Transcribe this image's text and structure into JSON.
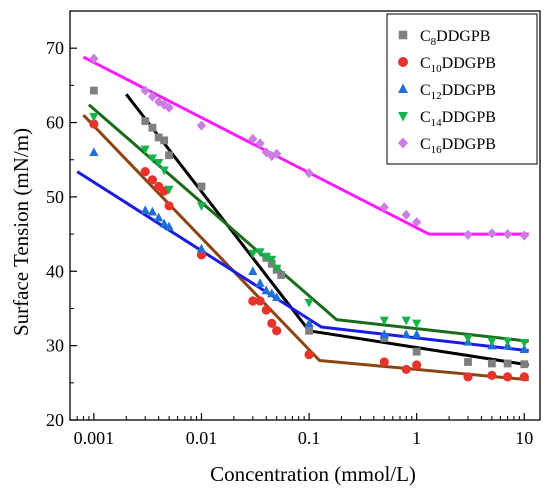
{
  "chart_data": {
    "type": "scatter",
    "xlabel": "Concentration (mmol/L)",
    "ylabel": "Surface Tension (mN/m)",
    "xscale": "log",
    "xlim": [
      0.0006,
      14
    ],
    "ylim": [
      20,
      75
    ],
    "x_ticks": [
      0.001,
      0.01,
      0.1,
      1,
      10
    ],
    "x_tick_labels": [
      "0.001",
      "0.01",
      "0.1",
      "1",
      "10"
    ],
    "y_ticks": [
      20,
      30,
      40,
      50,
      60,
      70
    ],
    "y_tick_labels": [
      "20",
      "30",
      "40",
      "50",
      "60",
      "70"
    ],
    "grid": false,
    "legend_position": "top-right",
    "series": [
      {
        "name": "C8DDGPB",
        "name_base": "C",
        "name_sub": "8",
        "name_rest": "DDGPB",
        "color": "#7f7f7f",
        "marker": "square",
        "line_color": "#000000",
        "x": [
          0.001,
          0.003,
          0.0035,
          0.004,
          0.0045,
          0.005,
          0.01,
          0.04,
          0.045,
          0.05,
          0.055,
          0.1,
          0.5,
          1,
          3,
          5,
          7,
          10
        ],
        "y": [
          64.3,
          60.2,
          59.3,
          58.0,
          57.6,
          55.6,
          51.4,
          41.8,
          41.0,
          40.2,
          39.5,
          32.0,
          31.0,
          29.2,
          27.8,
          27.6,
          27.6,
          27.5
        ],
        "fit": [
          [
            0.002,
            63.8
          ],
          [
            0.1,
            32.0
          ],
          [
            11,
            27.4
          ]
        ]
      },
      {
        "name": "C10DDGPB",
        "name_base": "C",
        "name_sub": "10",
        "name_rest": "DDGPB",
        "color": "#e8332c",
        "marker": "circle",
        "line_color": "#8b4513",
        "x": [
          0.001,
          0.003,
          0.0035,
          0.004,
          0.0045,
          0.005,
          0.01,
          0.03,
          0.035,
          0.04,
          0.045,
          0.05,
          0.1,
          0.5,
          0.8,
          1,
          3,
          5,
          7,
          10
        ],
        "y": [
          59.8,
          53.4,
          52.3,
          51.4,
          50.8,
          48.8,
          42.2,
          36.0,
          36.0,
          34.8,
          33.0,
          32.0,
          28.8,
          27.8,
          26.8,
          27.4,
          25.8,
          26.0,
          25.8,
          25.8
        ],
        "fit": [
          [
            0.0008,
            61.0
          ],
          [
            0.125,
            28.0
          ],
          [
            11,
            25.4
          ]
        ]
      },
      {
        "name": "C12DDGPB",
        "name_base": "C",
        "name_sub": "12",
        "name_rest": "DDGPB",
        "color": "#1f6fd6",
        "marker": "triangle-up",
        "line_color": "#1a1ae6",
        "x": [
          0.001,
          0.003,
          0.0035,
          0.004,
          0.0045,
          0.005,
          0.01,
          0.03,
          0.035,
          0.04,
          0.045,
          0.05,
          0.1,
          0.5,
          0.8,
          1,
          3,
          5,
          7,
          10
        ],
        "y": [
          56.0,
          48.2,
          48.0,
          47.2,
          46.4,
          46.0,
          43.0,
          40.0,
          38.4,
          37.4,
          37.0,
          36.5,
          33.0,
          31.5,
          31.5,
          31.5,
          30.5,
          30.0,
          30.0,
          29.5
        ],
        "fit": [
          [
            0.0007,
            53.4
          ],
          [
            0.13,
            32.5
          ],
          [
            11,
            29.3
          ]
        ]
      },
      {
        "name": "C14DDGPB",
        "name_base": "C",
        "name_sub": "14",
        "name_rest": "DDGPB",
        "color": "#15b34a",
        "marker": "triangle-down",
        "line_color": "#1a6b1a",
        "x": [
          0.001,
          0.003,
          0.0035,
          0.004,
          0.0045,
          0.005,
          0.01,
          0.03,
          0.035,
          0.04,
          0.045,
          0.05,
          0.1,
          0.5,
          0.8,
          1,
          3,
          5,
          7,
          10
        ],
        "y": [
          60.8,
          56.4,
          55.2,
          54.6,
          53.6,
          51.0,
          48.8,
          42.4,
          42.6,
          42.0,
          41.6,
          40.4,
          35.8,
          33.4,
          33.4,
          33.0,
          31.0,
          30.6,
          30.6,
          30.4
        ],
        "fit": [
          [
            0.0009,
            62.4
          ],
          [
            0.18,
            33.5
          ],
          [
            11,
            30.6
          ]
        ]
      },
      {
        "name": "C16DDGPB",
        "name_base": "C",
        "name_sub": "16",
        "name_rest": "DDGPB",
        "color": "#cc7de3",
        "marker": "diamond",
        "line_color": "#ff1aff",
        "x": [
          0.001,
          0.003,
          0.0035,
          0.004,
          0.0045,
          0.005,
          0.01,
          0.03,
          0.035,
          0.04,
          0.045,
          0.05,
          0.1,
          0.5,
          0.8,
          1,
          3,
          5,
          7,
          10
        ],
        "y": [
          68.6,
          64.3,
          63.5,
          62.8,
          62.4,
          62.0,
          59.6,
          57.8,
          57.2,
          56.0,
          55.5,
          55.8,
          53.2,
          48.6,
          47.6,
          46.6,
          44.9,
          45.1,
          45.0,
          44.8
        ],
        "fit": [
          [
            0.0008,
            68.8
          ],
          [
            1.3,
            45.0
          ],
          [
            11,
            45.0
          ]
        ]
      }
    ]
  }
}
